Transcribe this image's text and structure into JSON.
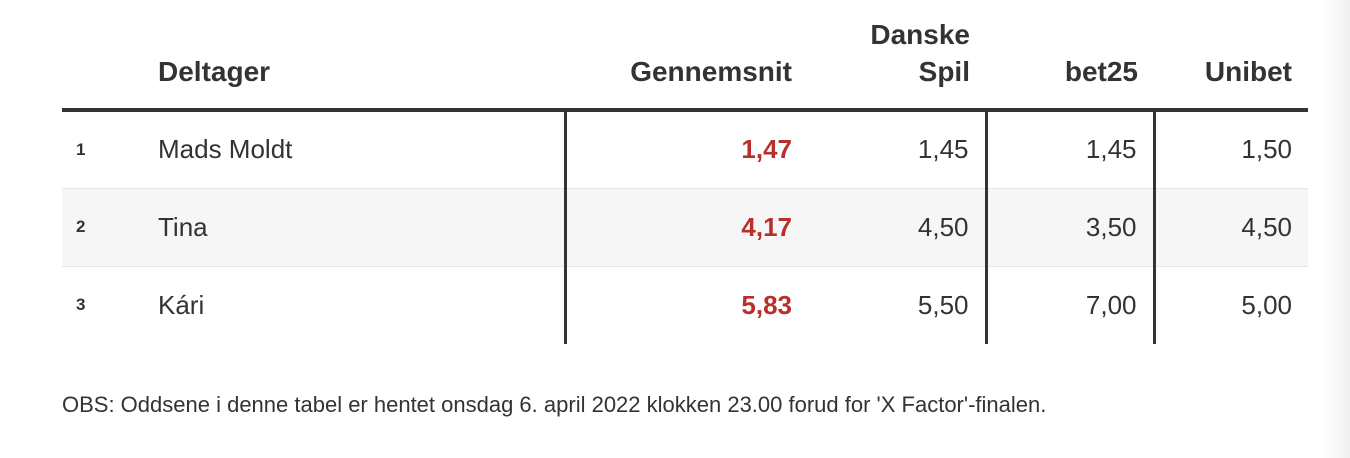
{
  "chart_data": {
    "type": "table",
    "headers": {
      "rank": "",
      "name": "Deltager",
      "average": "Gennemsnit",
      "danske_spil_line1": "Danske",
      "danske_spil_line2": "Spil",
      "bet25": "bet25",
      "unibet": "Unibet"
    },
    "rows": [
      {
        "rank": "1",
        "name": "Mads Moldt",
        "average": "1,47",
        "danske_spil": "1,45",
        "bet25": "1,45",
        "unibet": "1,50"
      },
      {
        "rank": "2",
        "name": "Tina",
        "average": "4,17",
        "danske_spil": "4,50",
        "bet25": "3,50",
        "unibet": "4,50"
      },
      {
        "rank": "3",
        "name": "Kári",
        "average": "5,83",
        "danske_spil": "5,50",
        "bet25": "7,00",
        "unibet": "5,00"
      }
    ],
    "note": "OBS: Oddsene i denne tabel er hentet onsdag 6. april 2022 klokken 23.00 forud for 'X Factor'-finalen.",
    "colors": {
      "text": "#333333",
      "average_highlight": "#b8302a",
      "alt_row": "#f6f6f6",
      "rule": "#333333"
    }
  }
}
